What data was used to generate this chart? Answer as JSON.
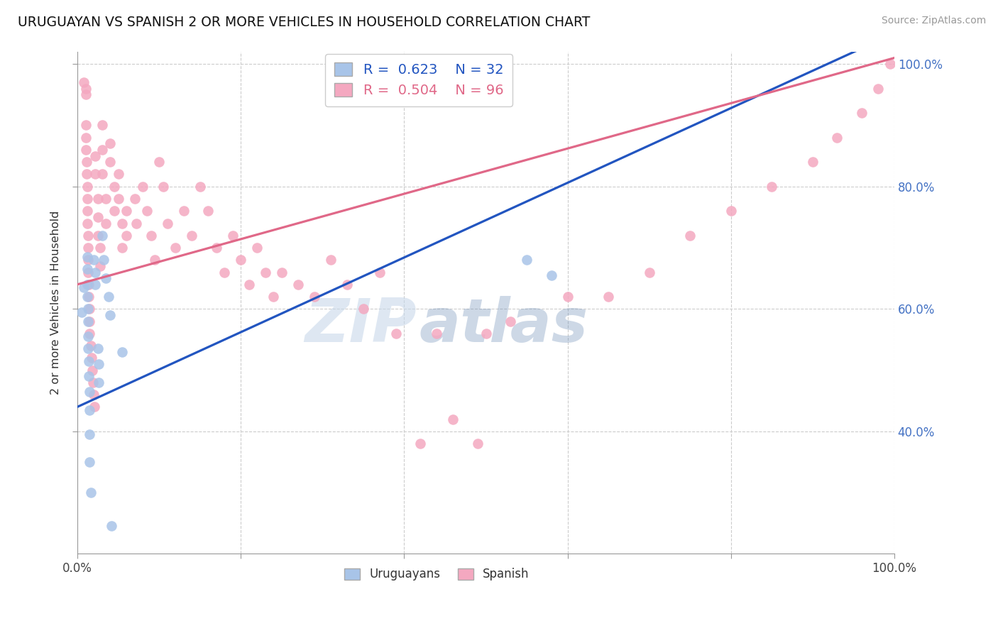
{
  "title": "URUGUAYAN VS SPANISH 2 OR MORE VEHICLES IN HOUSEHOLD CORRELATION CHART",
  "source": "Source: ZipAtlas.com",
  "ylabel": "2 or more Vehicles in Household",
  "xlim": [
    0.0,
    1.0
  ],
  "ylim": [
    0.2,
    1.02
  ],
  "legend_blue_label": "Uruguayans",
  "legend_pink_label": "Spanish",
  "blue_R": "0.623",
  "blue_N": "32",
  "pink_R": "0.504",
  "pink_N": "96",
  "watermark_zip": "ZIP",
  "watermark_atlas": "atlas",
  "blue_color": "#a8c4e8",
  "pink_color": "#f4a8c0",
  "blue_line_color": "#2255c0",
  "pink_line_color": "#e06888",
  "grid_color": "#cccccc",
  "blue_points": [
    [
      0.005,
      0.595
    ],
    [
      0.008,
      0.635
    ],
    [
      0.012,
      0.685
    ],
    [
      0.012,
      0.665
    ],
    [
      0.012,
      0.64
    ],
    [
      0.012,
      0.62
    ],
    [
      0.013,
      0.6
    ],
    [
      0.013,
      0.58
    ],
    [
      0.013,
      0.555
    ],
    [
      0.013,
      0.535
    ],
    [
      0.014,
      0.515
    ],
    [
      0.014,
      0.49
    ],
    [
      0.015,
      0.465
    ],
    [
      0.015,
      0.435
    ],
    [
      0.015,
      0.395
    ],
    [
      0.015,
      0.35
    ],
    [
      0.016,
      0.3
    ],
    [
      0.02,
      0.68
    ],
    [
      0.022,
      0.66
    ],
    [
      0.022,
      0.64
    ],
    [
      0.025,
      0.535
    ],
    [
      0.026,
      0.51
    ],
    [
      0.026,
      0.48
    ],
    [
      0.03,
      0.72
    ],
    [
      0.032,
      0.68
    ],
    [
      0.035,
      0.65
    ],
    [
      0.038,
      0.62
    ],
    [
      0.04,
      0.59
    ],
    [
      0.042,
      0.245
    ],
    [
      0.055,
      0.53
    ],
    [
      0.55,
      0.68
    ],
    [
      0.58,
      0.655
    ]
  ],
  "pink_points": [
    [
      0.008,
      0.97
    ],
    [
      0.01,
      0.96
    ],
    [
      0.01,
      0.95
    ],
    [
      0.01,
      0.9
    ],
    [
      0.01,
      0.88
    ],
    [
      0.01,
      0.86
    ],
    [
      0.011,
      0.84
    ],
    [
      0.011,
      0.82
    ],
    [
      0.012,
      0.8
    ],
    [
      0.012,
      0.78
    ],
    [
      0.012,
      0.76
    ],
    [
      0.012,
      0.74
    ],
    [
      0.013,
      0.72
    ],
    [
      0.013,
      0.7
    ],
    [
      0.013,
      0.68
    ],
    [
      0.013,
      0.66
    ],
    [
      0.014,
      0.64
    ],
    [
      0.014,
      0.62
    ],
    [
      0.015,
      0.6
    ],
    [
      0.015,
      0.58
    ],
    [
      0.015,
      0.56
    ],
    [
      0.016,
      0.54
    ],
    [
      0.017,
      0.52
    ],
    [
      0.018,
      0.5
    ],
    [
      0.019,
      0.48
    ],
    [
      0.02,
      0.46
    ],
    [
      0.021,
      0.44
    ],
    [
      0.022,
      0.85
    ],
    [
      0.022,
      0.82
    ],
    [
      0.025,
      0.78
    ],
    [
      0.025,
      0.75
    ],
    [
      0.025,
      0.72
    ],
    [
      0.028,
      0.7
    ],
    [
      0.028,
      0.67
    ],
    [
      0.03,
      0.9
    ],
    [
      0.03,
      0.86
    ],
    [
      0.03,
      0.82
    ],
    [
      0.035,
      0.78
    ],
    [
      0.035,
      0.74
    ],
    [
      0.04,
      0.87
    ],
    [
      0.04,
      0.84
    ],
    [
      0.045,
      0.8
    ],
    [
      0.045,
      0.76
    ],
    [
      0.05,
      0.82
    ],
    [
      0.05,
      0.78
    ],
    [
      0.055,
      0.74
    ],
    [
      0.055,
      0.7
    ],
    [
      0.06,
      0.76
    ],
    [
      0.06,
      0.72
    ],
    [
      0.07,
      0.78
    ],
    [
      0.072,
      0.74
    ],
    [
      0.08,
      0.8
    ],
    [
      0.085,
      0.76
    ],
    [
      0.09,
      0.72
    ],
    [
      0.095,
      0.68
    ],
    [
      0.1,
      0.84
    ],
    [
      0.105,
      0.8
    ],
    [
      0.11,
      0.74
    ],
    [
      0.12,
      0.7
    ],
    [
      0.13,
      0.76
    ],
    [
      0.14,
      0.72
    ],
    [
      0.15,
      0.8
    ],
    [
      0.16,
      0.76
    ],
    [
      0.17,
      0.7
    ],
    [
      0.18,
      0.66
    ],
    [
      0.19,
      0.72
    ],
    [
      0.2,
      0.68
    ],
    [
      0.21,
      0.64
    ],
    [
      0.22,
      0.7
    ],
    [
      0.23,
      0.66
    ],
    [
      0.24,
      0.62
    ],
    [
      0.25,
      0.66
    ],
    [
      0.27,
      0.64
    ],
    [
      0.29,
      0.62
    ],
    [
      0.31,
      0.68
    ],
    [
      0.33,
      0.64
    ],
    [
      0.35,
      0.6
    ],
    [
      0.37,
      0.66
    ],
    [
      0.39,
      0.56
    ],
    [
      0.42,
      0.38
    ],
    [
      0.44,
      0.56
    ],
    [
      0.46,
      0.42
    ],
    [
      0.49,
      0.38
    ],
    [
      0.5,
      0.56
    ],
    [
      0.53,
      0.58
    ],
    [
      0.6,
      0.62
    ],
    [
      0.65,
      0.62
    ],
    [
      0.7,
      0.66
    ],
    [
      0.75,
      0.72
    ],
    [
      0.8,
      0.76
    ],
    [
      0.85,
      0.8
    ],
    [
      0.9,
      0.84
    ],
    [
      0.93,
      0.88
    ],
    [
      0.96,
      0.92
    ],
    [
      0.98,
      0.96
    ],
    [
      0.995,
      1.0
    ]
  ]
}
